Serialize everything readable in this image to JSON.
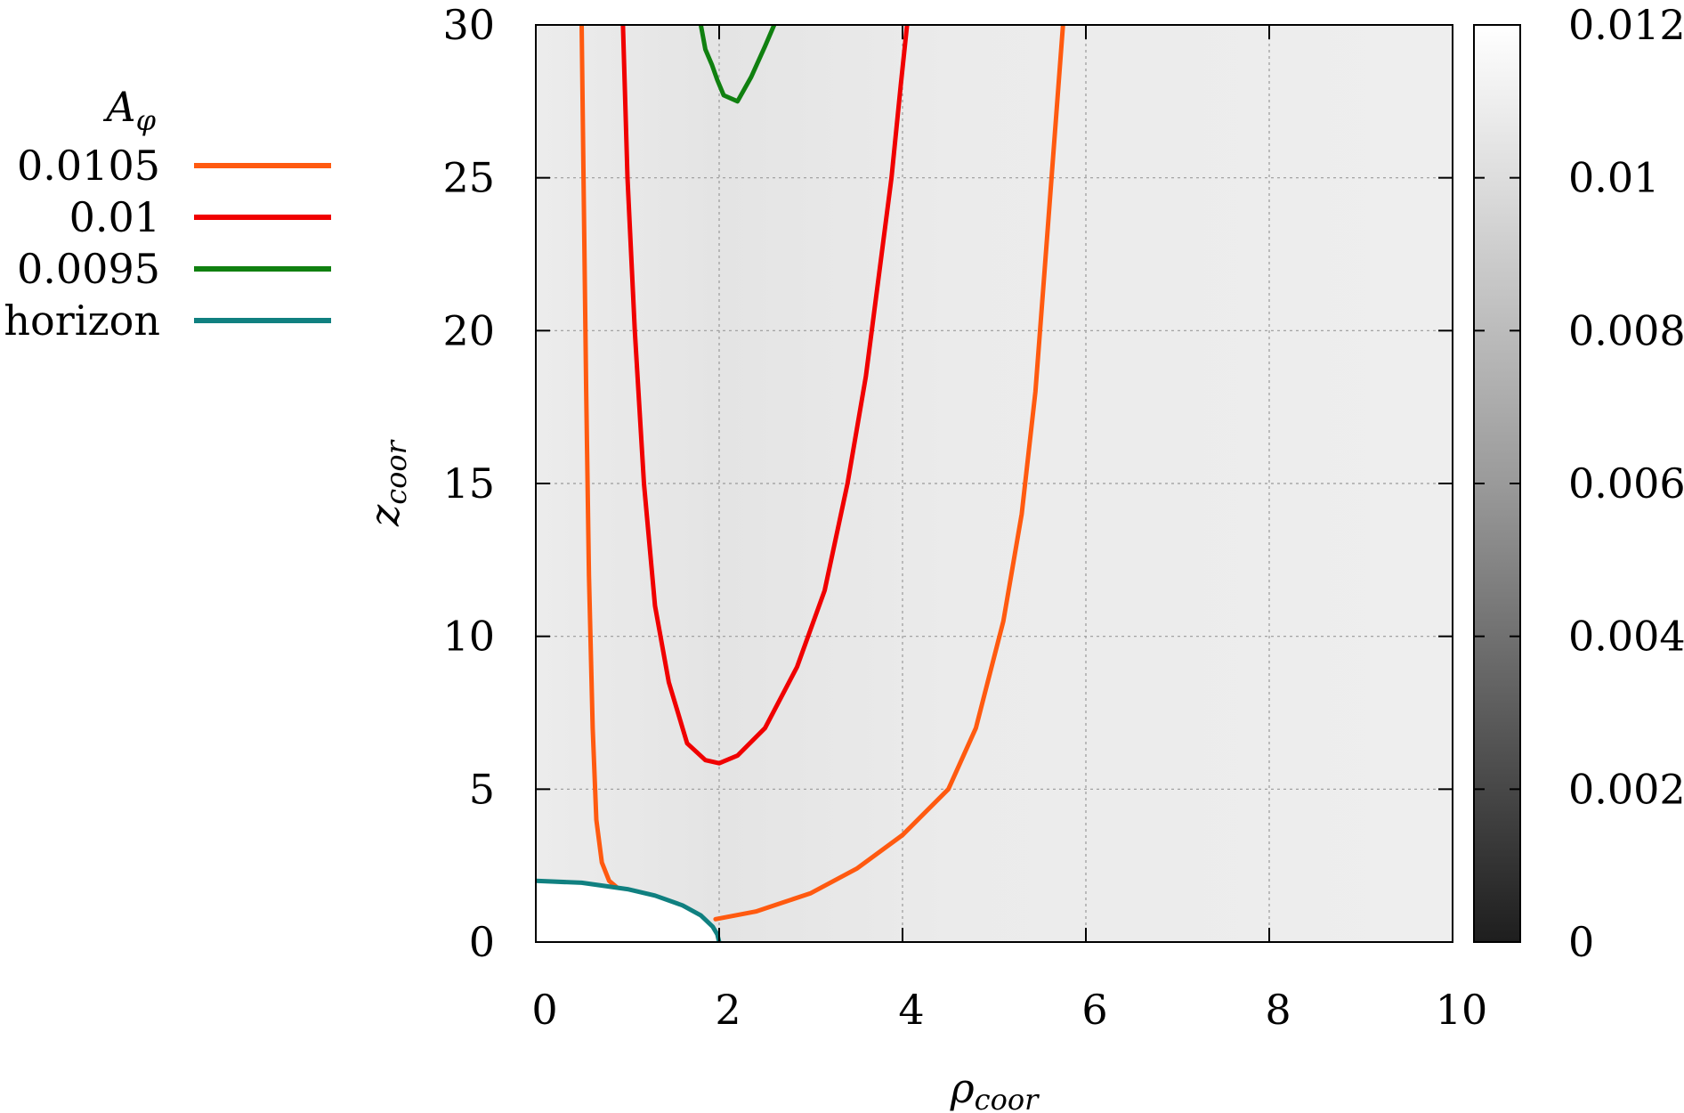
{
  "chart_data": {
    "type": "contour",
    "xlabel": "ρ",
    "xlabel_subscript": "coor",
    "ylabel": "z",
    "ylabel_subscript": "coor",
    "xlim": [
      0,
      10
    ],
    "ylim": [
      0,
      30
    ],
    "x_ticks": [
      "0",
      "2",
      "4",
      "6",
      "8",
      "10"
    ],
    "y_ticks": [
      "0",
      "5",
      "10",
      "15",
      "20",
      "25",
      "30"
    ],
    "x_tick_values": [
      0,
      2,
      4,
      6,
      8,
      10
    ],
    "y_tick_values": [
      0,
      5,
      10,
      15,
      20,
      25,
      30
    ],
    "grid": true,
    "legend_position": "left",
    "legend_title": "A",
    "legend_title_subscript": "φ",
    "colorbar": {
      "range": [
        0,
        0.012
      ],
      "ticks": [
        "0",
        "0.002",
        "0.004",
        "0.006",
        "0.008",
        "0.01",
        "0.012"
      ],
      "tick_values": [
        0,
        0.002,
        0.004,
        0.006,
        0.008,
        0.01,
        0.012
      ],
      "colormap": "grayscale"
    },
    "series": [
      {
        "name": "0.0105",
        "color": "#ff5a10",
        "segments": [
          [
            [
              0.5,
              30
            ],
            [
              0.52,
              25
            ],
            [
              0.55,
              18
            ],
            [
              0.58,
              12
            ],
            [
              0.62,
              7
            ],
            [
              0.66,
              4
            ],
            [
              0.72,
              2.6
            ],
            [
              0.8,
              2.0
            ],
            [
              0.88,
              1.8
            ]
          ],
          [
            [
              1.96,
              0.75
            ],
            [
              2.4,
              1.0
            ],
            [
              3.0,
              1.6
            ],
            [
              3.5,
              2.4
            ],
            [
              4.0,
              3.5
            ],
            [
              4.5,
              5.0
            ],
            [
              4.8,
              7.0
            ],
            [
              5.1,
              10.5
            ],
            [
              5.3,
              14.0
            ],
            [
              5.45,
              18.0
            ],
            [
              5.55,
              22.0
            ],
            [
              5.65,
              26.0
            ],
            [
              5.75,
              30
            ]
          ]
        ]
      },
      {
        "name": "0.01",
        "color": "#f00000",
        "segments": [
          [
            [
              0.95,
              30
            ],
            [
              1.0,
              25
            ],
            [
              1.08,
              20
            ],
            [
              1.18,
              15
            ],
            [
              1.3,
              11
            ],
            [
              1.45,
              8.5
            ],
            [
              1.65,
              6.5
            ],
            [
              1.85,
              5.95
            ],
            [
              2.0,
              5.85
            ],
            [
              2.2,
              6.1
            ],
            [
              2.5,
              7.0
            ],
            [
              2.85,
              9.0
            ],
            [
              3.15,
              11.5
            ],
            [
              3.4,
              15.0
            ],
            [
              3.6,
              18.5
            ],
            [
              3.75,
              22.0
            ],
            [
              3.88,
              25.0
            ],
            [
              3.98,
              28.0
            ],
            [
              4.05,
              30
            ]
          ]
        ]
      },
      {
        "name": "0.0095",
        "color": "#108010",
        "segments": [
          [
            [
              1.8,
              30
            ],
            [
              1.85,
              29.2
            ],
            [
              1.92,
              28.7
            ],
            [
              1.98,
              28.2
            ],
            [
              2.05,
              27.7
            ],
            [
              2.2,
              27.5
            ],
            [
              2.35,
              28.3
            ],
            [
              2.5,
              29.3
            ],
            [
              2.6,
              30
            ]
          ]
        ]
      },
      {
        "name": "horizon",
        "color": "#108080",
        "segments": [
          [
            [
              0,
              2.0
            ],
            [
              0.5,
              1.94
            ],
            [
              1.0,
              1.73
            ],
            [
              1.3,
              1.52
            ],
            [
              1.6,
              1.2
            ],
            [
              1.8,
              0.87
            ],
            [
              1.93,
              0.5
            ],
            [
              1.98,
              0.25
            ],
            [
              2.0,
              0
            ]
          ]
        ]
      }
    ]
  }
}
